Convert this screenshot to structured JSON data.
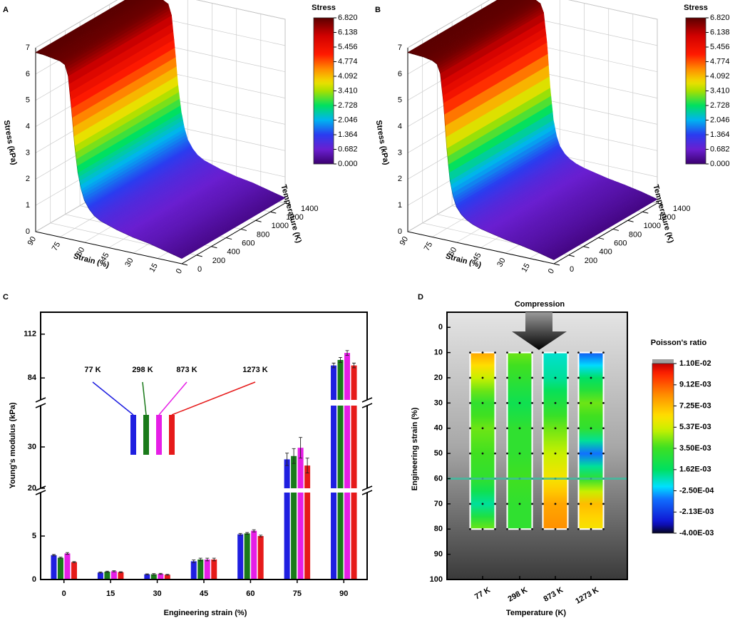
{
  "chart_data": [
    {
      "type": "surface3d",
      "panel_label": "A",
      "colorbar_title": "Stress",
      "zlabel": "Stress (kPa)",
      "xlabel": "Strain (%)",
      "ylabel": "Temperature (K)",
      "x": [
        90,
        85,
        80,
        75,
        72,
        70,
        68,
        66,
        64,
        62,
        60,
        57,
        54,
        50,
        45,
        40,
        30,
        20,
        10,
        0
      ],
      "values": [
        6.82,
        6.8,
        6.75,
        6.7,
        6.6,
        6.2,
        5.0,
        3.6,
        2.6,
        2.0,
        1.6,
        1.3,
        1.1,
        0.95,
        0.85,
        0.75,
        0.6,
        0.5,
        0.35,
        0.2
      ],
      "xlim": [
        0,
        90
      ],
      "ylim": [
        0,
        1400
      ],
      "zlim": [
        0,
        7
      ],
      "xticks": [
        0,
        15,
        30,
        45,
        60,
        75,
        90
      ],
      "yticks": [
        0,
        200,
        400,
        600,
        800,
        1000,
        1200,
        1400
      ],
      "zticks": [
        0,
        1,
        2,
        3,
        4,
        5,
        6,
        7
      ],
      "clim": [
        0,
        6.82
      ],
      "cticks": [
        {
          "value": 0,
          "label": "0.000"
        },
        0.682,
        1.364,
        2.046,
        2.728,
        {
          "value": 3.41,
          "label": "3.410"
        },
        4.092,
        4.774,
        5.456,
        6.138,
        {
          "value": 6.82,
          "label": "6.820"
        }
      ]
    },
    {
      "type": "surface3d",
      "panel_label": "B",
      "colorbar_title": "Stress",
      "zlabel": "Stress (kPa)",
      "xlabel": "Strain (%)",
      "ylabel": "Temperature (K)",
      "x": [
        90,
        85,
        80,
        75,
        72,
        70,
        68,
        66,
        64,
        62,
        60,
        57,
        54,
        50,
        45,
        40,
        30,
        20,
        10,
        0
      ],
      "values": [
        6.82,
        6.8,
        6.78,
        6.72,
        6.62,
        6.3,
        5.2,
        3.5,
        2.3,
        1.7,
        1.35,
        1.1,
        0.95,
        0.82,
        0.72,
        0.65,
        0.52,
        0.42,
        0.3,
        0.15
      ],
      "xlim": [
        0,
        90
      ],
      "ylim": [
        0,
        1400
      ],
      "zlim": [
        0,
        7
      ],
      "xticks": [
        0,
        15,
        30,
        45,
        60,
        75,
        90
      ],
      "yticks": [
        0,
        200,
        400,
        600,
        800,
        1000,
        1200,
        1400
      ],
      "zticks": [
        0,
        1,
        2,
        3,
        4,
        5,
        6,
        7
      ],
      "clim": [
        0,
        6.82
      ],
      "cticks": [
        {
          "value": 0,
          "label": "0.000"
        },
        0.682,
        1.364,
        2.046,
        2.728,
        {
          "value": 3.41,
          "label": "3.410"
        },
        4.092,
        4.774,
        5.456,
        6.138,
        {
          "value": 6.82,
          "label": "6.820"
        }
      ]
    },
    {
      "type": "bar",
      "panel_label": "C",
      "xlabel": "Engineering strain (%)",
      "ylabel": "Young's modulus (kPa)",
      "categories": [
        "0",
        "15",
        "30",
        "45",
        "60",
        "75",
        "90"
      ],
      "series": [
        {
          "name": "77 K",
          "color": "#1f1fe0",
          "values": [
            2.8,
            0.8,
            0.6,
            2.1,
            5.2,
            27,
            92
          ],
          "errors": [
            0.08,
            0.06,
            0.05,
            0.15,
            0.1,
            1.5,
            1.5
          ]
        },
        {
          "name": "298 K",
          "color": "#1a7a1a",
          "values": [
            2.5,
            0.9,
            0.6,
            2.3,
            5.3,
            27.8,
            95.5
          ],
          "errors": [
            0.08,
            0.06,
            0.08,
            0.15,
            0.1,
            1.8,
            1.6
          ]
        },
        {
          "name": "873 K",
          "color": "#e61ee6",
          "values": [
            3.0,
            0.95,
            0.65,
            2.3,
            5.6,
            29.8,
            100
          ],
          "errors": [
            0.1,
            0.06,
            0.06,
            0.15,
            0.12,
            2.5,
            1.5
          ]
        },
        {
          "name": "1273 K",
          "color": "#e61a1a",
          "values": [
            2.0,
            0.85,
            0.55,
            2.3,
            5.0,
            25.5,
            92
          ],
          "errors": [
            0.06,
            0.05,
            0.05,
            0.15,
            0.1,
            1.8,
            1.5
          ]
        }
      ],
      "ylim": [
        [
          0,
          10
        ],
        [
          20,
          40
        ],
        [
          70,
          126
        ]
      ],
      "yticks": [
        [
          0,
          5
        ],
        [
          20,
          30
        ],
        [
          84,
          112
        ]
      ]
    },
    {
      "type": "heatmap",
      "panel_label": "D",
      "annotation": "Compression",
      "xlabel": "Temperature (K)",
      "ylabel": "Engineering strain (%)",
      "colorbar_title": "Poisson's ratio",
      "categories": [
        "77 K",
        "298 K",
        "873 K",
        "1273 K"
      ],
      "y": [
        10,
        20,
        30,
        40,
        50,
        60,
        70,
        80
      ],
      "values": [
        [
          0.0075,
          0.005,
          0.003,
          0.004,
          0.0035,
          0.003,
          0.001,
          0.004
        ],
        [
          0.004,
          0.003,
          0.002,
          0.003,
          0.003,
          0.0035,
          0.003,
          0.003
        ],
        [
          0.0005,
          0.001,
          0.0025,
          0.004,
          0.005,
          0.006,
          0.0075,
          0.008
        ],
        [
          -0.0015,
          0.0015,
          0.004,
          0.003,
          -0.001,
          0.003,
          0.007,
          0.006
        ]
      ],
      "hline": 60,
      "ylim": [
        100,
        -6
      ],
      "yticks": [
        0,
        10,
        20,
        30,
        40,
        50,
        60,
        70,
        80,
        90,
        100
      ],
      "clim": [
        -0.004,
        0.011
      ],
      "cticks": [
        {
          "value": 0.011,
          "label": "1.10E-02"
        },
        {
          "value": 0.00912,
          "label": "9.12E-03"
        },
        {
          "value": 0.00725,
          "label": "7.25E-03"
        },
        {
          "value": 0.00537,
          "label": "5.37E-03"
        },
        {
          "value": 0.0035,
          "label": "3.50E-03"
        },
        {
          "value": 0.00162,
          "label": "1.62E-03"
        },
        {
          "value": -0.00025,
          "label": "-2.50E-04"
        },
        {
          "value": -0.00213,
          "label": "-2.13E-03"
        },
        {
          "value": -0.004,
          "label": "-4.00E-03"
        }
      ]
    }
  ]
}
